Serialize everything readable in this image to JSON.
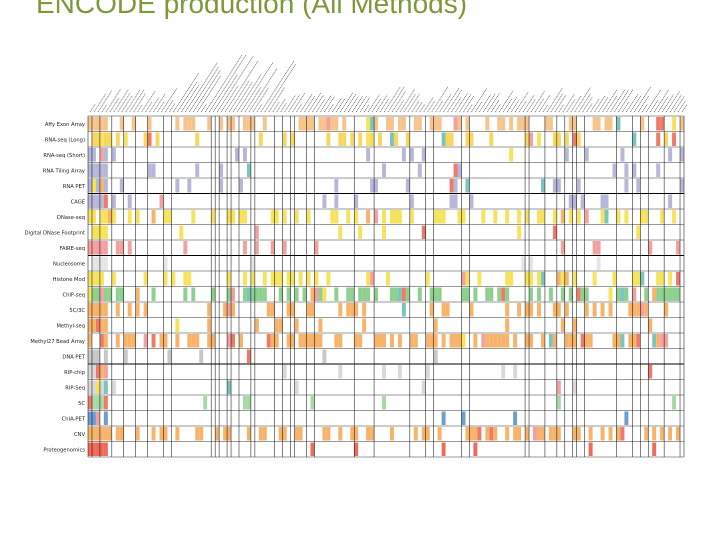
{
  "slide": {
    "title": "ENCODE production (All Methods)"
  },
  "chart_data": {
    "type": "heatmap",
    "title": "ENCODE production (All Methods)",
    "grid": true,
    "column_labels_note": "",
    "rows": [
      {
        "label": "Affy Exon Array",
        "color": "#f6c48c"
      },
      {
        "label": "RNA-seq (Long)",
        "color": "#f6d860"
      },
      {
        "label": "RNA-seq (Short)",
        "color": "#b7b7d8"
      },
      {
        "label": "RNA Tiling Array",
        "color": "#b7b7d8"
      },
      {
        "label": "RNA PET",
        "color": "#b7b7d8"
      },
      {
        "label": "CAGE",
        "color": "#b7b7d8"
      },
      {
        "label": "DNase-seq",
        "color": "#f6e35c"
      },
      {
        "label": "Digital DNase Footprint",
        "color": "#f6e35c"
      },
      {
        "label": "FAIRE-seq",
        "color": "#f4a0a0"
      },
      {
        "label": "Nucleosome",
        "color": "#e6e6e6"
      },
      {
        "label": "Histone Mod",
        "color": "#f6e35c"
      },
      {
        "label": "ChIP-seq",
        "color": "#8fcf8f"
      },
      {
        "label": "5C/3C",
        "color": "#f7b36a"
      },
      {
        "label": "Methyl-seq",
        "color": "#f7b36a"
      },
      {
        "label": "Methyl27 Bead Array",
        "color": "#f7b36a"
      },
      {
        "label": "DNA PET",
        "color": "#c8c8c8"
      },
      {
        "label": "RIP-chip",
        "color": "#d9d9d9"
      },
      {
        "label": "RIP-Seq",
        "color": "#d9d9d9"
      },
      {
        "label": "5C",
        "color": "#a8d8a8"
      },
      {
        "label": "ChIA-PET",
        "color": "#6a9fd0"
      },
      {
        "label": "CNV",
        "color": "#f7b36a"
      },
      {
        "label": "Proteogenomics",
        "color": "#f06a5a"
      }
    ],
    "palette": {
      "salmon": "#f07a6a",
      "yellow": "#f6e35c",
      "orange": "#f7b36a",
      "lavender": "#b7b7d8",
      "pink": "#f4a0a0",
      "green": "#8fcf8f",
      "teal": "#7cc4c0",
      "blue": "#6a9fd0",
      "gray": "#cfcfcf",
      "gridline": "#000000"
    }
  }
}
